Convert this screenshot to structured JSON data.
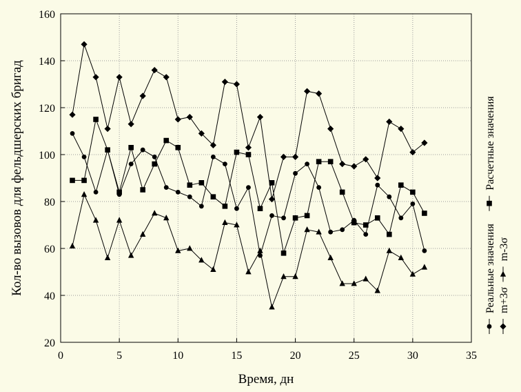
{
  "chart_data": {
    "type": "line",
    "xlabel": "Время, дн",
    "ylabel": "Кол-во вызовов для фельдшерских бригад",
    "xlim": [
      0,
      35
    ],
    "ylim": [
      20,
      160
    ],
    "xticks": [
      0,
      5,
      10,
      15,
      20,
      25,
      30,
      35
    ],
    "yticks": [
      20,
      40,
      60,
      80,
      100,
      120,
      140,
      160
    ],
    "grid": true,
    "legend_position": "right",
    "x": [
      1,
      2,
      3,
      4,
      5,
      6,
      7,
      8,
      9,
      10,
      11,
      12,
      13,
      14,
      15,
      16,
      17,
      18,
      19,
      20,
      21,
      22,
      23,
      24,
      25,
      26,
      27,
      28,
      29,
      30,
      31
    ],
    "series": [
      {
        "name": "Реальные значения",
        "marker": "circle",
        "values": [
          109,
          99,
          84,
          102,
          83,
          96,
          102,
          99,
          86,
          84,
          82,
          78,
          99,
          96,
          77,
          86,
          57,
          74,
          73,
          92,
          96,
          86,
          67,
          68,
          72,
          66,
          87,
          82,
          73,
          79,
          59
        ]
      },
      {
        "name": "Расчетные значения",
        "marker": "square",
        "values": [
          89,
          89,
          115,
          102,
          84,
          103,
          85,
          96,
          106,
          103,
          87,
          88,
          82,
          78,
          101,
          100,
          77,
          88,
          58,
          73,
          74,
          97,
          97,
          84,
          71,
          70,
          73,
          66,
          87,
          84,
          75
        ]
      },
      {
        "name": "m+3σ",
        "marker": "diamond",
        "values": [
          117,
          147,
          133,
          111,
          133,
          113,
          125,
          136,
          133,
          115,
          116,
          109,
          104,
          131,
          130,
          103,
          116,
          81,
          99,
          99,
          127,
          126,
          111,
          96,
          95,
          98,
          90,
          114,
          111,
          101,
          105
        ]
      },
      {
        "name": "m-3σ",
        "marker": "triangle",
        "values": [
          61,
          83,
          72,
          56,
          72,
          57,
          66,
          75,
          73,
          59,
          60,
          55,
          51,
          71,
          70,
          50,
          59,
          35,
          48,
          48,
          68,
          67,
          56,
          45,
          45,
          47,
          42,
          59,
          56,
          49,
          52
        ]
      }
    ]
  }
}
